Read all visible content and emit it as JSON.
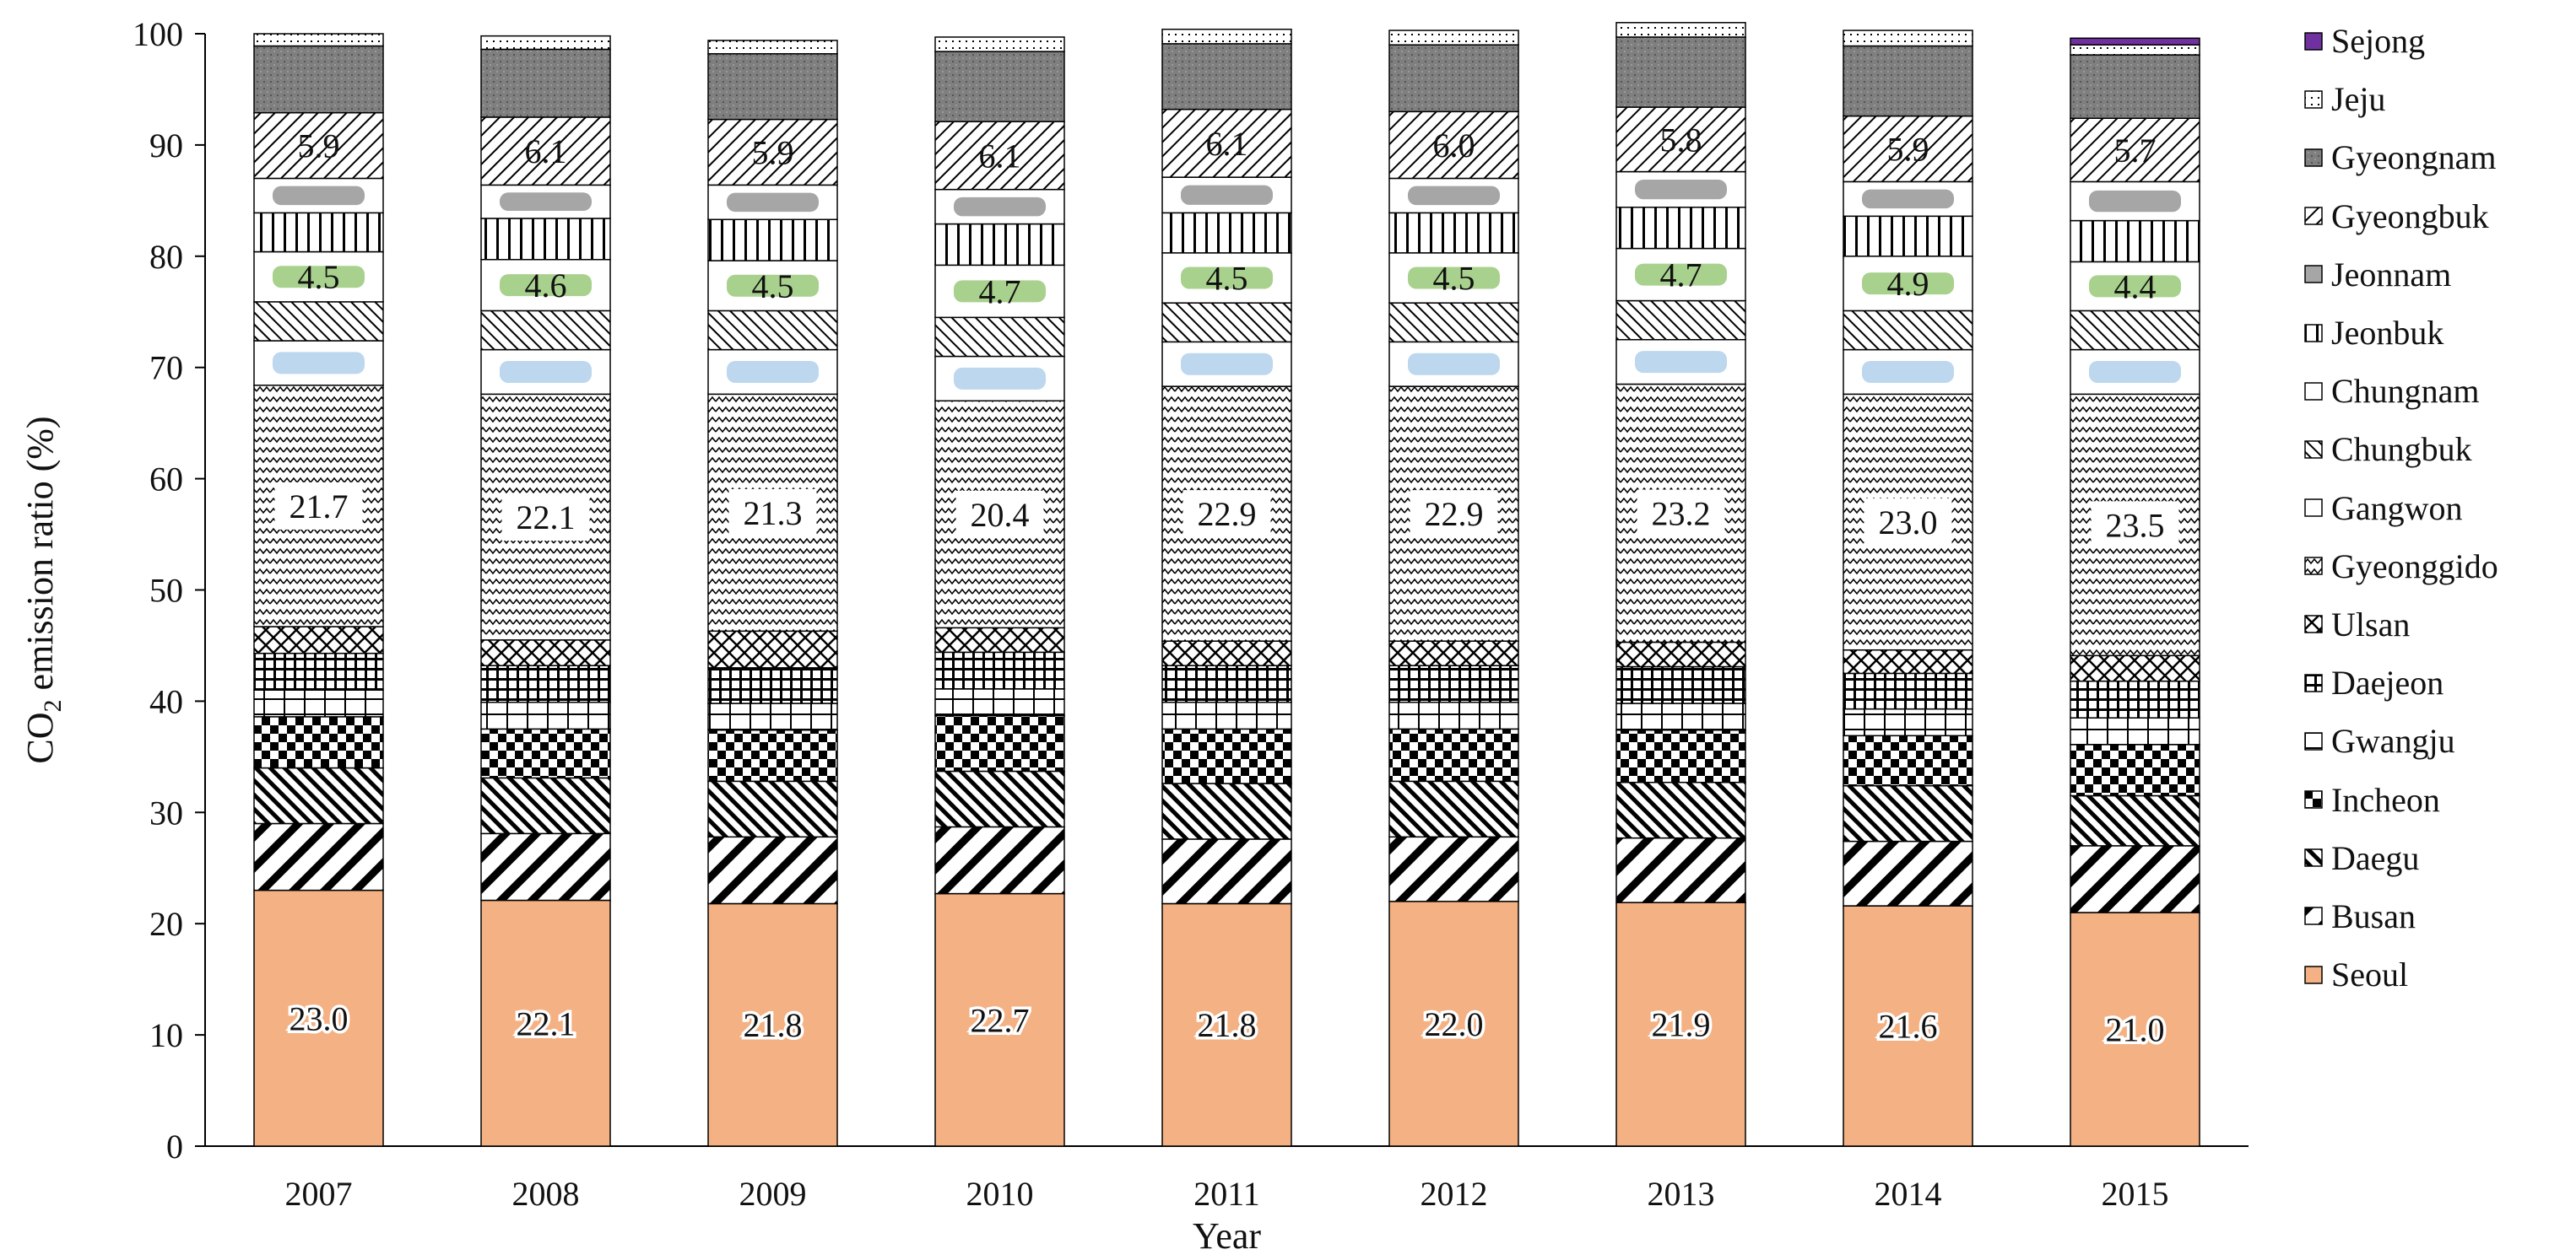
{
  "chart_data": {
    "type": "bar",
    "stacked": true,
    "xlabel": "Year",
    "ylabel": "CO2 emission ratio (%)",
    "ylabel_parts": {
      "pre": "CO",
      "sub": "2",
      "post": " emission ratio (%)"
    },
    "ylim": [
      0,
      100
    ],
    "yticks": [
      "0",
      "10",
      "20",
      "30",
      "40",
      "50",
      "60",
      "70",
      "80",
      "90",
      "100"
    ],
    "grid": false,
    "legend_position": "right",
    "categories": [
      "2007",
      "2008",
      "2009",
      "2010",
      "2011",
      "2012",
      "2013",
      "2014",
      "2015"
    ],
    "series": [
      {
        "name": "Seoul",
        "color": "#f4b183",
        "pattern": "solid",
        "values": [
          23.0,
          22.1,
          21.8,
          22.7,
          21.8,
          22.0,
          21.9,
          21.6,
          21.0
        ]
      },
      {
        "name": "Busan",
        "color": "#000000",
        "pattern": "diag",
        "values": [
          6.0,
          6.0,
          6.0,
          6.0,
          5.8,
          5.8,
          5.8,
          5.8,
          6.0
        ]
      },
      {
        "name": "Daegu",
        "color": "#000000",
        "pattern": "diag-dense",
        "values": [
          5.0,
          5.0,
          5.0,
          5.0,
          5.0,
          5.0,
          5.0,
          5.0,
          4.5
        ]
      },
      {
        "name": "Incheon",
        "color": "#000000",
        "pattern": "checker",
        "values": [
          4.6,
          4.4,
          4.6,
          5.0,
          4.9,
          4.7,
          4.7,
          4.5,
          4.6
        ]
      },
      {
        "name": "Gwangju",
        "color": "#000000",
        "pattern": "grid-open",
        "values": [
          2.4,
          2.4,
          2.4,
          2.4,
          2.4,
          2.4,
          2.4,
          2.4,
          2.4
        ]
      },
      {
        "name": "Daejeon",
        "color": "#000000",
        "pattern": "grid-dense",
        "values": [
          3.3,
          3.3,
          3.2,
          3.3,
          3.3,
          3.3,
          3.3,
          3.2,
          3.3
        ]
      },
      {
        "name": "Ulsan",
        "color": "#000000",
        "pattern": "crosshatch",
        "values": [
          2.4,
          2.3,
          3.3,
          2.2,
          2.2,
          2.2,
          2.2,
          2.1,
          2.3
        ]
      },
      {
        "name": "Gyeonggido",
        "color": "#000000",
        "pattern": "zigzag",
        "values": [
          21.7,
          22.1,
          21.3,
          20.4,
          22.9,
          22.9,
          23.2,
          23.0,
          23.5
        ]
      },
      {
        "name": "Gangwon",
        "color": "#bdd7ee",
        "pattern": "blue-band",
        "values": [
          4.0,
          4.0,
          4.0,
          4.0,
          4.0,
          4.0,
          4.0,
          4.0,
          4.0
        ]
      },
      {
        "name": "Chungbuk",
        "color": "#000000",
        "pattern": "diag-rev",
        "values": [
          3.5,
          3.5,
          3.5,
          3.5,
          3.5,
          3.5,
          3.5,
          3.5,
          3.5
        ]
      },
      {
        "name": "Chungnam",
        "color": "#a9d18e",
        "pattern": "green-band",
        "values": [
          4.5,
          4.6,
          4.5,
          4.7,
          4.5,
          4.5,
          4.7,
          4.9,
          4.4
        ]
      },
      {
        "name": "Jeonbuk",
        "color": "#000000",
        "pattern": "vlines",
        "values": [
          3.5,
          3.7,
          3.7,
          3.7,
          3.6,
          3.6,
          3.7,
          3.6,
          3.7
        ]
      },
      {
        "name": "Jeonnam",
        "color": "#a6a6a6",
        "pattern": "gray",
        "values": [
          3.1,
          3.0,
          3.1,
          3.1,
          3.2,
          3.1,
          3.2,
          3.1,
          3.5
        ]
      },
      {
        "name": "Gyeongbuk",
        "color": "#000000",
        "pattern": "diag-light",
        "values": [
          5.9,
          6.1,
          5.9,
          6.1,
          6.1,
          6.0,
          5.8,
          5.9,
          5.7
        ]
      },
      {
        "name": "Gyeongnam",
        "color": "#808080",
        "pattern": "dark-gray",
        "values": [
          6.0,
          6.1,
          5.9,
          6.3,
          5.9,
          6.0,
          6.3,
          6.3,
          5.7
        ]
      },
      {
        "name": "Jeju",
        "color": "#000000",
        "pattern": "dots",
        "values": [
          1.1,
          1.2,
          1.2,
          1.3,
          1.3,
          1.3,
          1.3,
          1.4,
          0.9
        ]
      },
      {
        "name": "Sejong",
        "color": "#7030a0",
        "pattern": "sejong",
        "values": [
          0,
          0,
          0,
          0,
          0,
          0,
          0,
          0,
          0.6
        ]
      }
    ],
    "data_labels": [
      "Seoul",
      "Gyeonggido",
      "Chungnam",
      "Gyeongbuk"
    ],
    "legend_order": [
      "Sejong",
      "Jeju",
      "Gyeongnam",
      "Gyeongbuk",
      "Jeonnam",
      "Jeonbuk",
      "Chungnam",
      "Chungbuk",
      "Gangwon",
      "Gyeonggido",
      "Ulsan",
      "Daejeon",
      "Gwangju",
      "Incheon",
      "Daegu",
      "Busan",
      "Seoul"
    ]
  }
}
